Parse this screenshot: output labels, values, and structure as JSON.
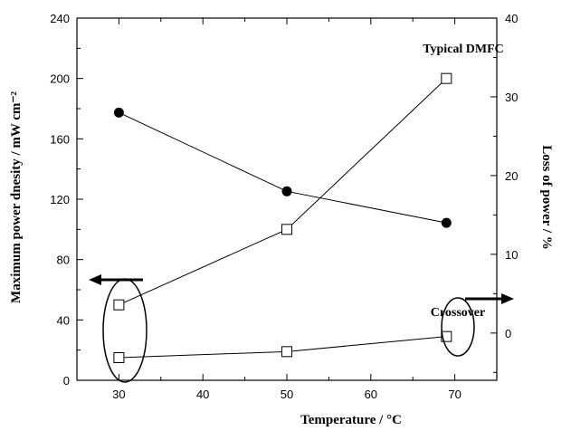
{
  "chart_data": {
    "type": "scatter",
    "xlabel": "Temperature / °C",
    "ylabel_left": "Maximum power dnesity / mW cm⁻²",
    "ylabel_right": "Loss of power / %",
    "xlim": [
      25,
      75
    ],
    "ylim_left": [
      0,
      240
    ],
    "ylim_right": [
      -6,
      40
    ],
    "x_ticks": [
      "30",
      "40",
      "50",
      "60",
      "70"
    ],
    "y_left_ticks": [
      "0",
      "40",
      "80",
      "120",
      "160",
      "200",
      "240"
    ],
    "y_right_ticks": [
      "0",
      "10",
      "20",
      "30",
      "40"
    ],
    "series": [
      {
        "name": "Typical DMFC",
        "axis": "left",
        "marker": "open-square",
        "x": [
          30,
          50,
          69
        ],
        "y": [
          50,
          100,
          200
        ]
      },
      {
        "name": "Crossover",
        "axis": "left",
        "marker": "open-square",
        "x": [
          30,
          50,
          69
        ],
        "y": [
          15,
          19,
          29
        ]
      },
      {
        "axis": "right",
        "marker": "filled-circle",
        "x": [
          30,
          50,
          69
        ],
        "y": [
          28,
          18,
          14
        ]
      }
    ],
    "annotations": [
      "Typical DMFC",
      "Crossover"
    ],
    "grid": false
  }
}
